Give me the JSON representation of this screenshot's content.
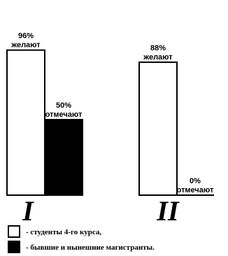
{
  "chart_data": {
    "type": "bar",
    "categories": [
      "I",
      "II"
    ],
    "series": [
      {
        "values": [
          96,
          88
        ],
        "labels": [
          "96%",
          "88%"
        ],
        "verb": "желают",
        "fill": "#ffffff"
      },
      {
        "values": [
          50,
          0
        ],
        "labels": [
          "50%",
          "0%"
        ],
        "verb": "отмечают",
        "fill": "#000000"
      }
    ],
    "ylim": [
      0,
      100
    ],
    "legend": [
      {
        "text": "- студенты 4-го курса,",
        "fill": "#ffffff"
      },
      {
        "text": "- бывшие и нынешние магистранты.",
        "fill": "#000000"
      }
    ]
  }
}
